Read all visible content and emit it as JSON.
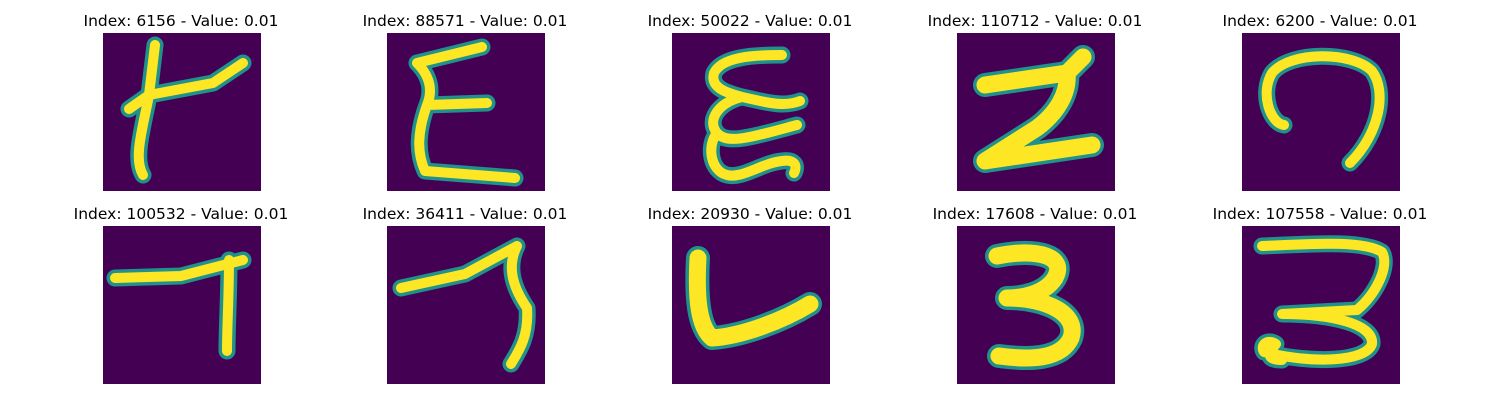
{
  "colors": {
    "background": "#440154",
    "edge": "#21918c",
    "stroke": "#fde725"
  },
  "panels": [
    {
      "title": "Index: 6156 - Value: 0.01",
      "glyph": "h-like"
    },
    {
      "title": "Index: 88571 - Value: 0.01",
      "glyph": "epsilon-like"
    },
    {
      "title": "Index: 50022 - Value: 0.01",
      "glyph": "epsilon-like"
    },
    {
      "title": "Index: 110712 - Value: 0.01",
      "glyph": "z-like"
    },
    {
      "title": "Index: 6200 - Value: 0.01",
      "glyph": "hook-like"
    },
    {
      "title": "Index: 100532 - Value: 0.01",
      "glyph": "t-like"
    },
    {
      "title": "Index: 36411 - Value: 0.01",
      "glyph": "seven-like"
    },
    {
      "title": "Index: 20930 - Value: 0.01",
      "glyph": "v-like"
    },
    {
      "title": "Index: 17608 - Value: 0.01",
      "glyph": "three-like"
    },
    {
      "title": "Index: 107558 - Value: 0.01",
      "glyph": "three-like"
    }
  ]
}
